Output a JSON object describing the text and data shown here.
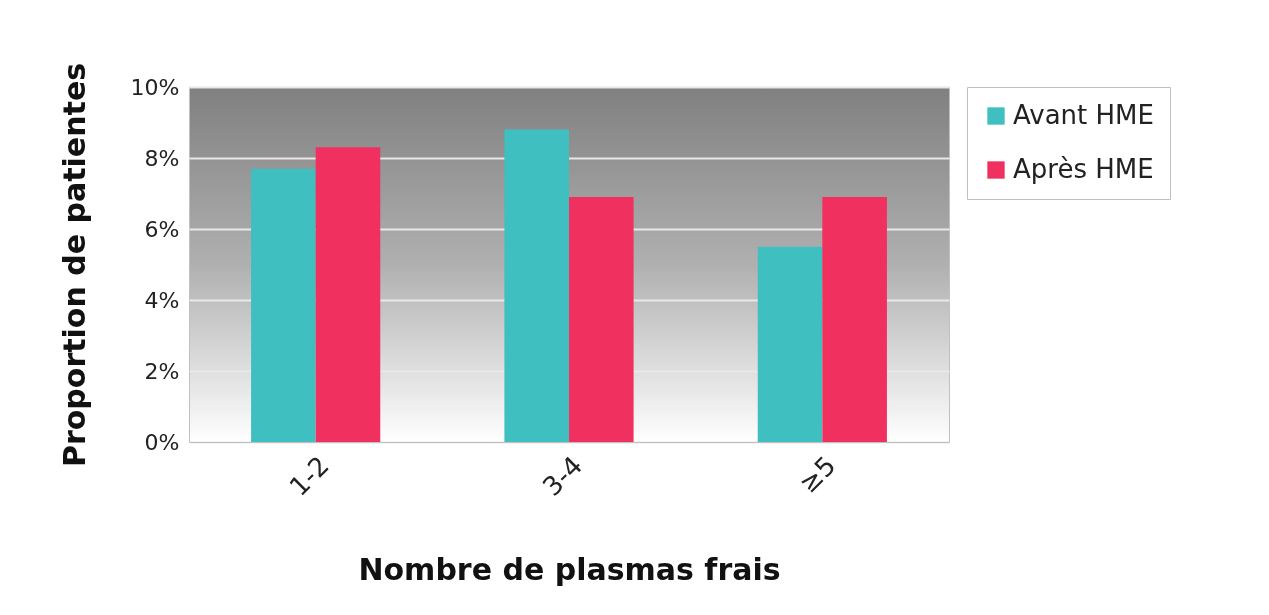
{
  "chart_data": {
    "type": "bar",
    "xlabel": "Nombre de plasmas frais",
    "ylabel": "Proportion de patientes",
    "categories": [
      "1-2",
      "3-4",
      "≥5"
    ],
    "series": [
      {
        "name": "Avant HME",
        "color": "#3fbfbf",
        "values": [
          7.7,
          8.8,
          5.5
        ]
      },
      {
        "name": "Après HME",
        "color": "#f0305f",
        "values": [
          8.3,
          6.9,
          6.9
        ]
      }
    ],
    "ylim": [
      0,
      10
    ],
    "yticks": [
      {
        "value": 0,
        "label": "0%"
      },
      {
        "value": 2,
        "label": "2%"
      },
      {
        "value": 4,
        "label": "4%"
      },
      {
        "value": 6,
        "label": "6%"
      },
      {
        "value": 8,
        "label": "8%"
      },
      {
        "value": 10,
        "label": "10%"
      }
    ],
    "grid": "y",
    "legend": "top right"
  }
}
